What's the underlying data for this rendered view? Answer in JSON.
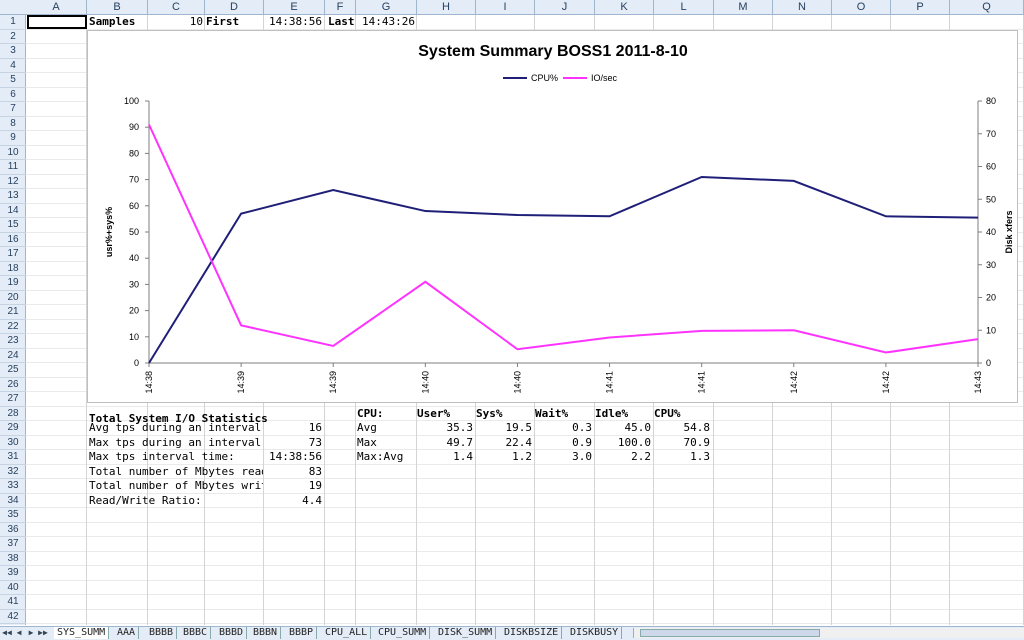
{
  "columns": [
    "A",
    "B",
    "C",
    "D",
    "E",
    "F",
    "G",
    "H",
    "I",
    "J",
    "K",
    "L",
    "M",
    "N",
    "O",
    "P",
    "Q"
  ],
  "rows": [
    "1",
    "2",
    "3",
    "4",
    "5",
    "6",
    "7",
    "8",
    "9",
    "10",
    "11",
    "12",
    "13",
    "14",
    "15",
    "16",
    "17",
    "18",
    "19",
    "20",
    "21",
    "22",
    "23",
    "24",
    "25",
    "26",
    "27",
    "28",
    "29",
    "30",
    "31",
    "32",
    "33",
    "34",
    "35",
    "36",
    "37",
    "38",
    "39",
    "40",
    "41",
    "42"
  ],
  "row1": {
    "samples_label": "Samples",
    "samples_value": "10",
    "first_label": "First",
    "first_value": "14:38:56",
    "last_label": "Last",
    "last_value": "14:43:26"
  },
  "io_stats": {
    "title": "Total System I/O Statistics",
    "rows": [
      {
        "label": "Avg tps during an interval:",
        "value": "16"
      },
      {
        "label": "Max tps during an interval:",
        "value": "73"
      },
      {
        "label": "Max tps interval time:",
        "value": "14:38:56"
      },
      {
        "label": "Total number of Mbytes read",
        "value": "83"
      },
      {
        "label": "Total number of Mbytes writ",
        "value": "19"
      },
      {
        "label": "Read/Write Ratio:",
        "value": "4.4"
      }
    ]
  },
  "cpu_table": {
    "headers": [
      "CPU:",
      "User%",
      "Sys%",
      "Wait%",
      "Idle%",
      "CPU%"
    ],
    "rows": [
      [
        "Avg",
        "35.3",
        "19.5",
        "0.3",
        "45.0",
        "54.8"
      ],
      [
        "Max",
        "49.7",
        "22.4",
        "0.9",
        "100.0",
        "70.9"
      ],
      [
        "Max:Avg",
        "1.4",
        "1.2",
        "3.0",
        "2.2",
        "1.3"
      ]
    ]
  },
  "sheet_tabs": [
    "SYS_SUMM",
    "AAA",
    "BBBB",
    "BBBC",
    "BBBD",
    "BBBN",
    "BBBP",
    "CPU_ALL",
    "CPU_SUMM",
    "DISK_SUMM",
    "DISKBSIZE",
    "DISKBUSY"
  ],
  "active_tab": "SYS_SUMM",
  "colors": {
    "cpu": "#1f1f78",
    "io": "#ff33ff",
    "header_bg": "#e4ecf7"
  },
  "chart_data": {
    "type": "line",
    "title": "System Summary BOSS1  2011-8-10",
    "ylabel": "usr%+sys%",
    "y2label": "Disk xfers",
    "ylim": [
      0,
      100
    ],
    "y2lim": [
      0,
      80
    ],
    "yticks": [
      "0",
      "10",
      "20",
      "30",
      "40",
      "50",
      "60",
      "70",
      "80",
      "90",
      "100"
    ],
    "y2ticks": [
      "0",
      "10",
      "20",
      "30",
      "40",
      "50",
      "60",
      "70",
      "80"
    ],
    "categories": [
      "14:38",
      "14:39",
      "14:39",
      "14:40",
      "14:40",
      "14:41",
      "14:41",
      "14:42",
      "14:42",
      "14:43"
    ],
    "series": [
      {
        "name": "CPU%",
        "axis": "left",
        "values": [
          0,
          57,
          66,
          58,
          56.5,
          56,
          71,
          69.5,
          56,
          55.5
        ]
      },
      {
        "name": "IO/sec",
        "axis": "right",
        "values": [
          72.8,
          11.5,
          5.2,
          24.8,
          4.2,
          7.8,
          9.8,
          10,
          3.2,
          7.3
        ]
      }
    ],
    "legend": "top"
  }
}
